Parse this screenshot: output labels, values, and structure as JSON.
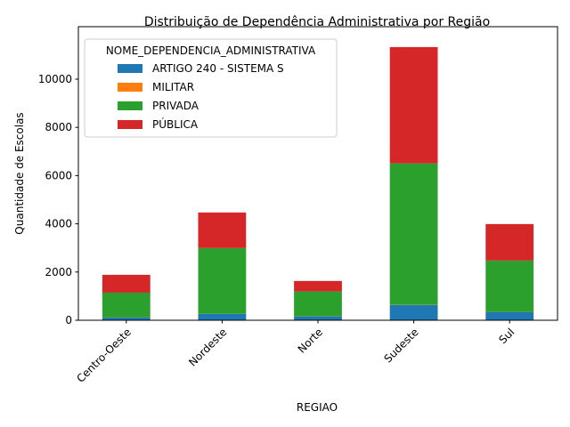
{
  "chart_data": {
    "type": "bar",
    "stacked": true,
    "title": "Distribuição de Dependência Administrativa por Região",
    "xlabel": "REGIAO",
    "ylabel": "Quantidade de Escolas",
    "categories": [
      "Centro-Oeste",
      "Nordeste",
      "Norte",
      "Sudeste",
      "Sul"
    ],
    "series": [
      {
        "name": "ARTIGO 240 - SISTEMA S",
        "color": "#1f77b4",
        "values": [
          110,
          260,
          160,
          627,
          332
        ]
      },
      {
        "name": "MILITAR",
        "color": "#ff7f0e",
        "values": [
          5,
          5,
          5,
          10,
          5
        ]
      },
      {
        "name": "PRIVADA",
        "color": "#2ca02c",
        "values": [
          1030,
          2730,
          1030,
          5870,
          2140
        ]
      },
      {
        "name": "PÚBLICA",
        "color": "#d62728",
        "values": [
          740,
          1475,
          435,
          4825,
          1513
        ]
      }
    ],
    "ylim": [
      0,
      12177
    ],
    "yticks": [
      0,
      2000,
      4000,
      6000,
      8000,
      10000
    ],
    "grid": false,
    "legend": {
      "title": "NOME_DEPENDENCIA_ADMINISTRATIVA",
      "placement": "top-left"
    }
  }
}
